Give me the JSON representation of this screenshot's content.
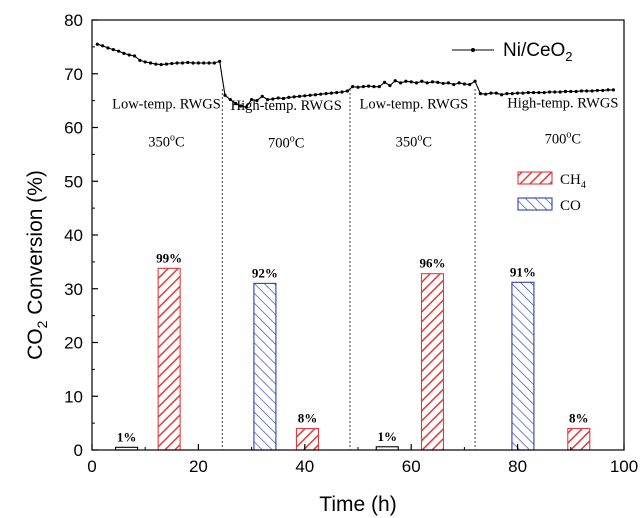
{
  "chart_data": {
    "type": "bar",
    "xlabel": "Time (h)",
    "ylabel": {
      "prefix": "CO",
      "sub": "2",
      "suffix": " Conversion (%)"
    },
    "xlim": [
      0,
      100
    ],
    "ylim": [
      0,
      80
    ],
    "x_ticks": [
      0,
      20,
      40,
      60,
      80,
      100
    ],
    "y_ticks": [
      0,
      10,
      20,
      30,
      40,
      50,
      60,
      70,
      80
    ],
    "phase_dividers": [
      24.5,
      48.5,
      72
    ],
    "phases": [
      {
        "line1": "Low-temp. RWGS",
        "temp": "350",
        "unit": "oC",
        "x": 14,
        "y1": 63.5,
        "y2": 56.5
      },
      {
        "line1": "High-temp. RWGS",
        "temp": "700",
        "unit": "oC",
        "x": 36.5,
        "y1": 63.3,
        "y2": 56.3
      },
      {
        "line1": "Low-temp. RWGS",
        "temp": "350",
        "unit": "oC",
        "x": 60.5,
        "y1": 63.5,
        "y2": 56.5
      },
      {
        "line1": "High-temp. RWGS",
        "temp": "700",
        "unit": "oC",
        "x": 88.5,
        "y1": 63.7,
        "y2": 57.0
      }
    ],
    "line_series": {
      "name": "Ni/CeO",
      "name_sub": "2",
      "color": "#000000",
      "x": [
        1,
        2,
        3,
        4,
        5,
        6,
        7,
        8,
        9,
        10,
        11,
        12,
        13,
        14,
        15,
        16,
        17,
        18,
        19,
        20,
        21,
        22,
        23,
        24,
        25,
        26,
        27,
        28,
        29,
        30,
        31,
        32,
        33,
        34,
        35,
        36,
        37,
        38,
        39,
        40,
        41,
        42,
        43,
        44,
        45,
        46,
        47,
        48,
        49,
        50,
        51,
        52,
        53,
        54,
        55,
        56,
        57,
        58,
        59,
        60,
        61,
        62,
        63,
        64,
        65,
        66,
        67,
        68,
        69,
        70,
        71,
        72,
        73,
        74,
        75,
        76,
        77,
        78,
        79,
        80,
        81,
        82,
        83,
        84,
        85,
        86,
        87,
        88,
        89,
        90,
        91,
        92,
        93,
        94,
        95,
        96,
        97,
        98
      ],
      "y": [
        75.5,
        75.2,
        74.8,
        74.5,
        74.2,
        73.8,
        73.5,
        73.3,
        72.5,
        72.2,
        72.0,
        71.8,
        71.7,
        71.8,
        71.9,
        72.0,
        72.0,
        72.1,
        72.0,
        72.0,
        72.0,
        72.0,
        72.0,
        72.3,
        66.0,
        65.2,
        64.5,
        64.0,
        63.8,
        65.2,
        65.0,
        65.8,
        65.2,
        65.3,
        65.5,
        65.4,
        65.6,
        65.7,
        65.8,
        65.9,
        66.0,
        66.1,
        66.2,
        66.3,
        66.4,
        66.5,
        66.6,
        66.8,
        67.6,
        67.5,
        67.6,
        67.7,
        67.6,
        67.6,
        68.4,
        67.8,
        68.7,
        68.3,
        68.6,
        68.5,
        68.3,
        68.6,
        68.3,
        68.5,
        68.4,
        68.2,
        68.3,
        68.0,
        68.3,
        68.1,
        68.0,
        68.6,
        66.3,
        66.2,
        66.4,
        66.4,
        66.1,
        66.3,
        66.3,
        66.4,
        66.4,
        66.5,
        66.5,
        66.5,
        66.5,
        66.6,
        66.6,
        66.6,
        66.7,
        66.7,
        66.7,
        66.8,
        66.8,
        66.8,
        66.9,
        66.9,
        67.0,
        67.0
      ]
    },
    "bar_legend": [
      {
        "key": "ch4",
        "label": "CH",
        "sub": "4",
        "color": "#e23b3b"
      },
      {
        "key": "co",
        "label": "CO",
        "sub": "",
        "color": "#2b3fb3"
      }
    ],
    "bars": [
      {
        "x": 6.5,
        "value": 0.5,
        "label": "1%",
        "kind": "co_outline"
      },
      {
        "x": 14.5,
        "value": 33.8,
        "label": "99%",
        "kind": "ch4"
      },
      {
        "x": 32.5,
        "value": 31.0,
        "label": "92%",
        "kind": "co"
      },
      {
        "x": 40.5,
        "value": 4.0,
        "label": "8%",
        "kind": "ch4"
      },
      {
        "x": 55.5,
        "value": 0.6,
        "label": "1%",
        "kind": "co_outline"
      },
      {
        "x": 64.0,
        "value": 32.8,
        "label": "96%",
        "kind": "ch4"
      },
      {
        "x": 81.0,
        "value": 31.2,
        "label": "91%",
        "kind": "co"
      },
      {
        "x": 91.5,
        "value": 4.0,
        "label": "8%",
        "kind": "ch4"
      }
    ]
  }
}
